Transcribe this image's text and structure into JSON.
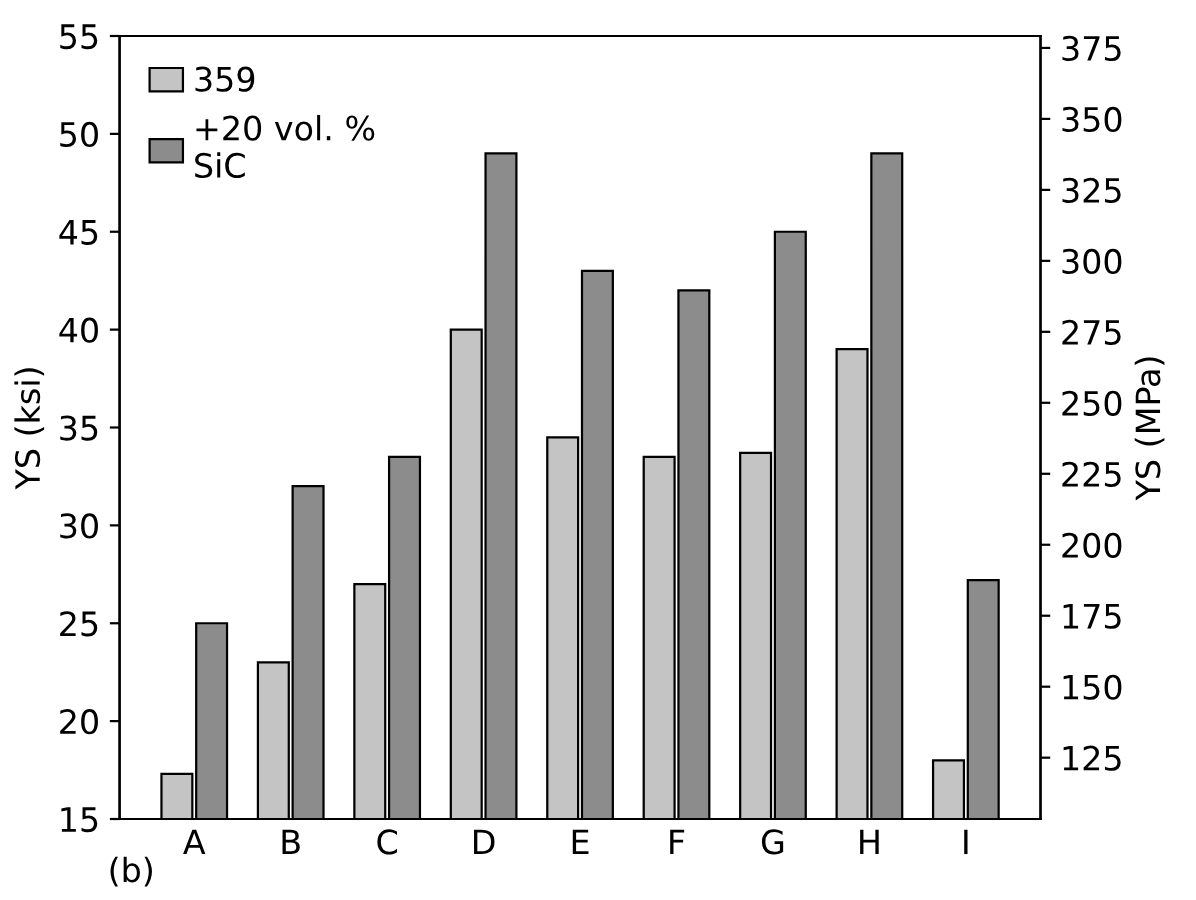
{
  "chart_data": {
    "type": "bar",
    "ylabel": "YS (ksi)",
    "y2label": "YS (MPa)",
    "categories": [
      "A",
      "B",
      "C",
      "D",
      "E",
      "F",
      "G",
      "H",
      "I"
    ],
    "series": [
      {
        "name": "359",
        "color": "#c4c4c4",
        "values": [
          17.3,
          23,
          27,
          40,
          34.5,
          33.5,
          33.7,
          39,
          18
        ]
      },
      {
        "name": "+20 vol. %\nSiC",
        "color": "#8c8c8c",
        "values": [
          25,
          32,
          33.5,
          49,
          43,
          42,
          45,
          49,
          27.2
        ]
      }
    ],
    "ylim": [
      15,
      55
    ],
    "yticks": [
      15,
      20,
      25,
      30,
      35,
      40,
      45,
      50,
      55
    ],
    "y2lim": [
      103.4,
      379.2
    ],
    "y2ticks": [
      125,
      150,
      175,
      200,
      225,
      250,
      275,
      300,
      325,
      350,
      375
    ],
    "annotations": [
      "(b)"
    ],
    "legend": "top left",
    "grid": false
  }
}
